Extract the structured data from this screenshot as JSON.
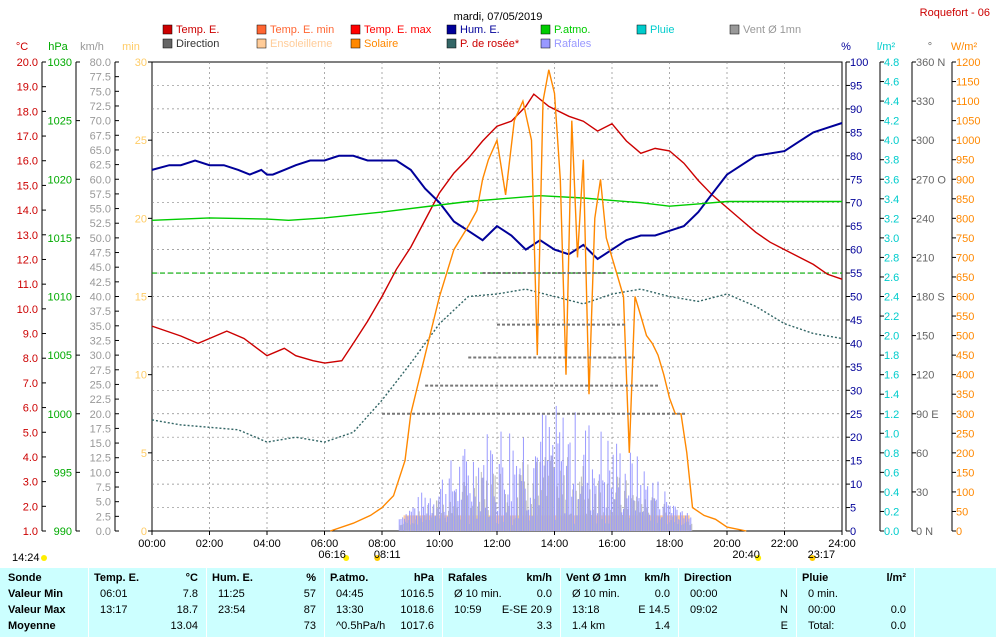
{
  "header": {
    "title": "mardi, 07/05/2019",
    "station": "Roquefort - 06"
  },
  "legend": [
    {
      "label": "Temp. E.",
      "color": "#cc0000",
      "text_color": "#cc0000"
    },
    {
      "label": "Temp. E. min",
      "color": "#ff6633",
      "text_color": "#ff6633"
    },
    {
      "label": "Temp. E. max",
      "color": "#ff0000",
      "text_color": "#ff0000"
    },
    {
      "label": "Hum. E.",
      "color": "#000099",
      "text_color": "#000099"
    },
    {
      "label": "P.atmo.",
      "color": "#00cc00",
      "text_color": "#00cc00"
    },
    {
      "label": "Pluie",
      "color": "#00cccc",
      "text_color": "#00cccc"
    },
    {
      "label": "Vent Ø 1mn",
      "color": "#999999",
      "text_color": "#999999"
    },
    {
      "label": "Direction",
      "color": "#666666",
      "text_color": "#333333"
    },
    {
      "label": "Ensoleilleme",
      "color": "#ffcc99",
      "text_color": "#ffcc99"
    },
    {
      "label": "Solaire",
      "color": "#ff8800",
      "text_color": "#ff8800"
    },
    {
      "label": "P. de rosée*",
      "color": "#336666",
      "text_color": "#cc0000"
    },
    {
      "label": "Rafales",
      "color": "#9999ff",
      "text_color": "#9999ff"
    }
  ],
  "axis_units": {
    "temp": "°C",
    "press": "hPa",
    "wind": "km/h",
    "min": "min",
    "hum": "%",
    "rain": "l/m²",
    "dir": "°",
    "solar": "W/m²"
  },
  "chart_data": {
    "type": "line",
    "x_range": [
      "00:00",
      "24:00"
    ],
    "x_ticks": [
      "00:00",
      "02:00",
      "04:00",
      "06:00",
      "08:00",
      "10:00",
      "12:00",
      "14:00",
      "16:00",
      "18:00",
      "20:00",
      "22:00",
      "24:00"
    ],
    "axes": {
      "temp": {
        "range": [
          1.0,
          20.0
        ],
        "ticks": [
          "20.0",
          "19.0",
          "18.0",
          "17.0",
          "16.0",
          "15.0",
          "14.0",
          "13.0",
          "12.0",
          "11.0",
          "10.0",
          "9.0",
          "8.0",
          "7.0",
          "6.0",
          "5.0",
          "4.0",
          "3.0",
          "2.0",
          "1.0"
        ]
      },
      "press": {
        "range": [
          990,
          1030
        ],
        "ticks": [
          "1030",
          "1025",
          "1020",
          "1015",
          "1010",
          "1005",
          "1000",
          "995",
          "990"
        ]
      },
      "wind": {
        "range": [
          0.0,
          80.0
        ],
        "ticks": [
          "80.0",
          "77.5",
          "75.0",
          "72.5",
          "70.0",
          "67.5",
          "65.0",
          "62.5",
          "60.0",
          "57.5",
          "55.0",
          "52.5",
          "50.0",
          "47.5",
          "45.0",
          "42.5",
          "40.0",
          "37.5",
          "35.0",
          "32.5",
          "30.0",
          "27.5",
          "25.0",
          "22.5",
          "20.0",
          "17.5",
          "15.0",
          "12.5",
          "10.0",
          "7.5",
          "5.0",
          "2.5",
          "0.0"
        ]
      },
      "sun": {
        "range": [
          0,
          30
        ],
        "ticks": [
          "30",
          "25",
          "20",
          "15",
          "10",
          "5",
          "0"
        ]
      },
      "hum": {
        "range": [
          0,
          100
        ],
        "ticks": [
          "100",
          "95",
          "90",
          "85",
          "80",
          "75",
          "70",
          "65",
          "60",
          "55",
          "50",
          "45",
          "40",
          "35",
          "30",
          "25",
          "20",
          "15",
          "10",
          "5",
          "0"
        ]
      },
      "rain": {
        "range": [
          0.0,
          4.8
        ],
        "ticks": [
          "4.8",
          "4.6",
          "4.4",
          "4.2",
          "4.0",
          "3.8",
          "3.6",
          "3.4",
          "3.2",
          "3.0",
          "2.8",
          "2.6",
          "2.4",
          "2.2",
          "2.0",
          "1.8",
          "1.6",
          "1.4",
          "1.2",
          "1.0",
          "0.8",
          "0.6",
          "0.4",
          "0.2",
          "0.0"
        ]
      },
      "dir": {
        "range": [
          0,
          360
        ],
        "ticks": [
          "360 N",
          "330",
          "300",
          "270 O",
          "240",
          "210",
          "180 S",
          "150",
          "120",
          "90 E",
          "60",
          "30",
          "0 N"
        ]
      },
      "solar": {
        "range": [
          0,
          1200
        ],
        "ticks": [
          "1200",
          "1150",
          "1100",
          "1050",
          "1000",
          "950",
          "900",
          "850",
          "800",
          "750",
          "700",
          "650",
          "600",
          "550",
          "500",
          "450",
          "400",
          "350",
          "300",
          "250",
          "200",
          "150",
          "100",
          "50",
          "0"
        ]
      }
    },
    "series": [
      {
        "name": "Temp. E.",
        "axis": "temp",
        "color": "#cc0000",
        "points": [
          [
            0,
            9.3
          ],
          [
            1,
            8.9
          ],
          [
            1.6,
            8.6
          ],
          [
            2,
            8.8
          ],
          [
            2.6,
            9.1
          ],
          [
            3.2,
            8.8
          ],
          [
            4,
            8.1
          ],
          [
            4.6,
            8.4
          ],
          [
            5,
            8.1
          ],
          [
            5.6,
            7.9
          ],
          [
            6.01,
            7.8
          ],
          [
            6.6,
            7.9
          ],
          [
            7,
            8.6
          ],
          [
            7.5,
            9.5
          ],
          [
            8,
            10.5
          ],
          [
            8.5,
            11.6
          ],
          [
            9,
            12.5
          ],
          [
            9.5,
            13.6
          ],
          [
            10,
            14.7
          ],
          [
            10.5,
            15.5
          ],
          [
            11,
            16.1
          ],
          [
            11.5,
            16.8
          ],
          [
            12,
            17.4
          ],
          [
            12.5,
            17.6
          ],
          [
            13,
            18.2
          ],
          [
            13.28,
            18.7
          ],
          [
            13.8,
            18.2
          ],
          [
            14.5,
            17.8
          ],
          [
            15,
            17.6
          ],
          [
            15.5,
            17.2
          ],
          [
            16,
            17.5
          ],
          [
            16.5,
            16.8
          ],
          [
            17,
            16.3
          ],
          [
            17.5,
            16.5
          ],
          [
            18,
            16.4
          ],
          [
            18.5,
            15.9
          ],
          [
            19,
            15.2
          ],
          [
            19.5,
            14.6
          ],
          [
            20,
            14.1
          ],
          [
            20.5,
            13.6
          ],
          [
            21,
            13.1
          ],
          [
            21.5,
            12.7
          ],
          [
            22,
            12.4
          ],
          [
            22.5,
            12.1
          ],
          [
            23,
            11.8
          ],
          [
            23.5,
            11.4
          ],
          [
            24,
            11.2
          ]
        ]
      },
      {
        "name": "Hum. E.",
        "axis": "hum",
        "color": "#000099",
        "points": [
          [
            0,
            77
          ],
          [
            0.6,
            78
          ],
          [
            1,
            78
          ],
          [
            1.5,
            79
          ],
          [
            2,
            78
          ],
          [
            2.5,
            78
          ],
          [
            3,
            77
          ],
          [
            3.4,
            76
          ],
          [
            3.8,
            77
          ],
          [
            4,
            76
          ],
          [
            4.2,
            76
          ],
          [
            4.6,
            77
          ],
          [
            5,
            78
          ],
          [
            5.5,
            79
          ],
          [
            6,
            79
          ],
          [
            6.5,
            80
          ],
          [
            7,
            80
          ],
          [
            7.5,
            79
          ],
          [
            8,
            79
          ],
          [
            8.5,
            79
          ],
          [
            9,
            77
          ],
          [
            9.5,
            73
          ],
          [
            10,
            70
          ],
          [
            10.5,
            66
          ],
          [
            11,
            64
          ],
          [
            11.5,
            62
          ],
          [
            12,
            65
          ],
          [
            12.5,
            63
          ],
          [
            13,
            60
          ],
          [
            13.5,
            62
          ],
          [
            14,
            60
          ],
          [
            14.5,
            59
          ],
          [
            15,
            61
          ],
          [
            15.5,
            58
          ],
          [
            16,
            60
          ],
          [
            16.5,
            62
          ],
          [
            17,
            63
          ],
          [
            17.5,
            63
          ],
          [
            18,
            64
          ],
          [
            18.5,
            65
          ],
          [
            19,
            68
          ],
          [
            19.5,
            72
          ],
          [
            20,
            76
          ],
          [
            20.5,
            78
          ],
          [
            21,
            80
          ],
          [
            22,
            81
          ],
          [
            22.5,
            83
          ],
          [
            23,
            85
          ],
          [
            23.5,
            86
          ],
          [
            24,
            87
          ]
        ]
      },
      {
        "name": "P.atmo.",
        "axis": "press",
        "color": "#00cc00",
        "points": [
          [
            0,
            1016.5
          ],
          [
            2,
            1016.7
          ],
          [
            4,
            1016.6
          ],
          [
            4.75,
            1016.5
          ],
          [
            6,
            1016.7
          ],
          [
            8,
            1017.2
          ],
          [
            10,
            1017.8
          ],
          [
            11,
            1018.1
          ],
          [
            12,
            1018.3
          ],
          [
            13.5,
            1018.6
          ],
          [
            15,
            1018.4
          ],
          [
            16,
            1018.2
          ],
          [
            17,
            1018.0
          ],
          [
            18,
            1017.7
          ],
          [
            19,
            1017.9
          ],
          [
            20,
            1018.1
          ],
          [
            21,
            1018.1
          ],
          [
            22,
            1018.1
          ],
          [
            24,
            1018.1
          ]
        ]
      },
      {
        "name": "P. de rosée*",
        "axis": "temp",
        "color": "#336666",
        "points": [
          [
            0,
            5.5
          ],
          [
            1,
            5.3
          ],
          [
            2,
            5.2
          ],
          [
            3,
            5.1
          ],
          [
            4,
            4.6
          ],
          [
            5,
            4.8
          ],
          [
            6,
            4.6
          ],
          [
            7,
            5.0
          ],
          [
            8,
            6.3
          ],
          [
            9,
            7.8
          ],
          [
            10,
            9.4
          ],
          [
            11,
            10.5
          ],
          [
            12,
            10.6
          ],
          [
            13,
            10.8
          ],
          [
            14,
            10.5
          ],
          [
            15,
            10.2
          ],
          [
            16,
            10.6
          ],
          [
            17,
            10.8
          ],
          [
            18,
            10.5
          ],
          [
            19,
            10.3
          ],
          [
            20,
            10.6
          ],
          [
            21,
            10.1
          ],
          [
            22,
            9.4
          ],
          [
            23,
            9.0
          ],
          [
            24,
            8.8
          ]
        ]
      },
      {
        "name": "Solaire",
        "axis": "solar",
        "color": "#ff8800",
        "points": [
          [
            6.2,
            0
          ],
          [
            7,
            20
          ],
          [
            7.6,
            40
          ],
          [
            8,
            60
          ],
          [
            8.4,
            90
          ],
          [
            8.8,
            180
          ],
          [
            9,
            300
          ],
          [
            9.5,
            450
          ],
          [
            10,
            600
          ],
          [
            10.5,
            720
          ],
          [
            11,
            780
          ],
          [
            11.3,
            820
          ],
          [
            11.5,
            900
          ],
          [
            11.7,
            950
          ],
          [
            12,
            1000
          ],
          [
            12.3,
            860
          ],
          [
            12.6,
            1050
          ],
          [
            12.9,
            1100
          ],
          [
            13.2,
            1000
          ],
          [
            13.4,
            450
          ],
          [
            13.6,
            1100
          ],
          [
            13.8,
            1180
          ],
          [
            14,
            1120
          ],
          [
            14.2,
            900
          ],
          [
            14.4,
            400
          ],
          [
            14.6,
            1050
          ],
          [
            14.8,
            700
          ],
          [
            15,
            950
          ],
          [
            15.2,
            350
          ],
          [
            15.4,
            800
          ],
          [
            15.6,
            900
          ],
          [
            15.8,
            750
          ],
          [
            16,
            700
          ],
          [
            16.2,
            650
          ],
          [
            16.4,
            600
          ],
          [
            16.6,
            200
          ],
          [
            16.8,
            600
          ],
          [
            17,
            550
          ],
          [
            17.2,
            500
          ],
          [
            17.4,
            480
          ],
          [
            17.6,
            450
          ],
          [
            17.8,
            400
          ],
          [
            18,
            340
          ],
          [
            18.2,
            300
          ],
          [
            18.4,
            300
          ],
          [
            18.6,
            200
          ],
          [
            18.8,
            60
          ],
          [
            19.2,
            40
          ],
          [
            19.6,
            30
          ],
          [
            20.0,
            10
          ],
          [
            20.67,
            0
          ]
        ]
      }
    ],
    "dashed_refs": [
      {
        "name": "Vent Ø 1mn max",
        "axis": "press",
        "value": 1012,
        "color": "#00aa00"
      }
    ],
    "sunrise": "06:16",
    "sunset": "20:40",
    "moon_rise": "08:11",
    "moon_set": "23:17",
    "bottom_left_time": "14:24"
  },
  "summary": {
    "columns": [
      {
        "title": "Sonde"
      },
      {
        "title": "Temp. E.",
        "unit": "°C"
      },
      {
        "title": "Hum. E.",
        "unit": "%"
      },
      {
        "title": "P.atmo.",
        "unit": "hPa"
      },
      {
        "title": "Rafales",
        "unit": "km/h"
      },
      {
        "title": "Vent Ø 1mn",
        "unit": "km/h"
      },
      {
        "title": "Direction"
      },
      {
        "title": "Pluie",
        "unit": "l/m²"
      }
    ],
    "rows": [
      {
        "label": "Valeur Min",
        "temp_time": "06:01",
        "temp_val": "7.8",
        "hum_time": "11:25",
        "hum_val": "57",
        "press_time": "04:45",
        "press_val": "1016.5",
        "gust_label": "Ø 10 min.",
        "gust_val": "0.0",
        "wind_label": "Ø 10 min.",
        "wind_val": "0.0",
        "dir_time": "00:00",
        "dir_val": "N",
        "rain_time": "0 min.",
        "rain_val": ""
      },
      {
        "label": "Valeur Max",
        "temp_time": "13:17",
        "temp_val": "18.7",
        "hum_time": "23:54",
        "hum_val": "87",
        "press_time": "13:30",
        "press_val": "1018.6",
        "gust_label": "10:59",
        "gust_val": "E-SE 20.9",
        "wind_label": "13:18",
        "wind_val": "E 14.5",
        "dir_time": "09:02",
        "dir_val": "N",
        "rain_time": "00:00",
        "rain_val": "0.0"
      },
      {
        "label": "Moyenne",
        "temp_time": "",
        "temp_val": "13.04",
        "hum_time": "",
        "hum_val": "73",
        "press_time": "^0.5hPa/h",
        "press_val": "1017.6",
        "gust_label": "",
        "gust_val": "3.3",
        "wind_label": "1.4 km",
        "wind_val": "1.4",
        "dir_time": "",
        "dir_val": "E",
        "rain_time": "Total:",
        "rain_val": "0.0"
      }
    ]
  }
}
